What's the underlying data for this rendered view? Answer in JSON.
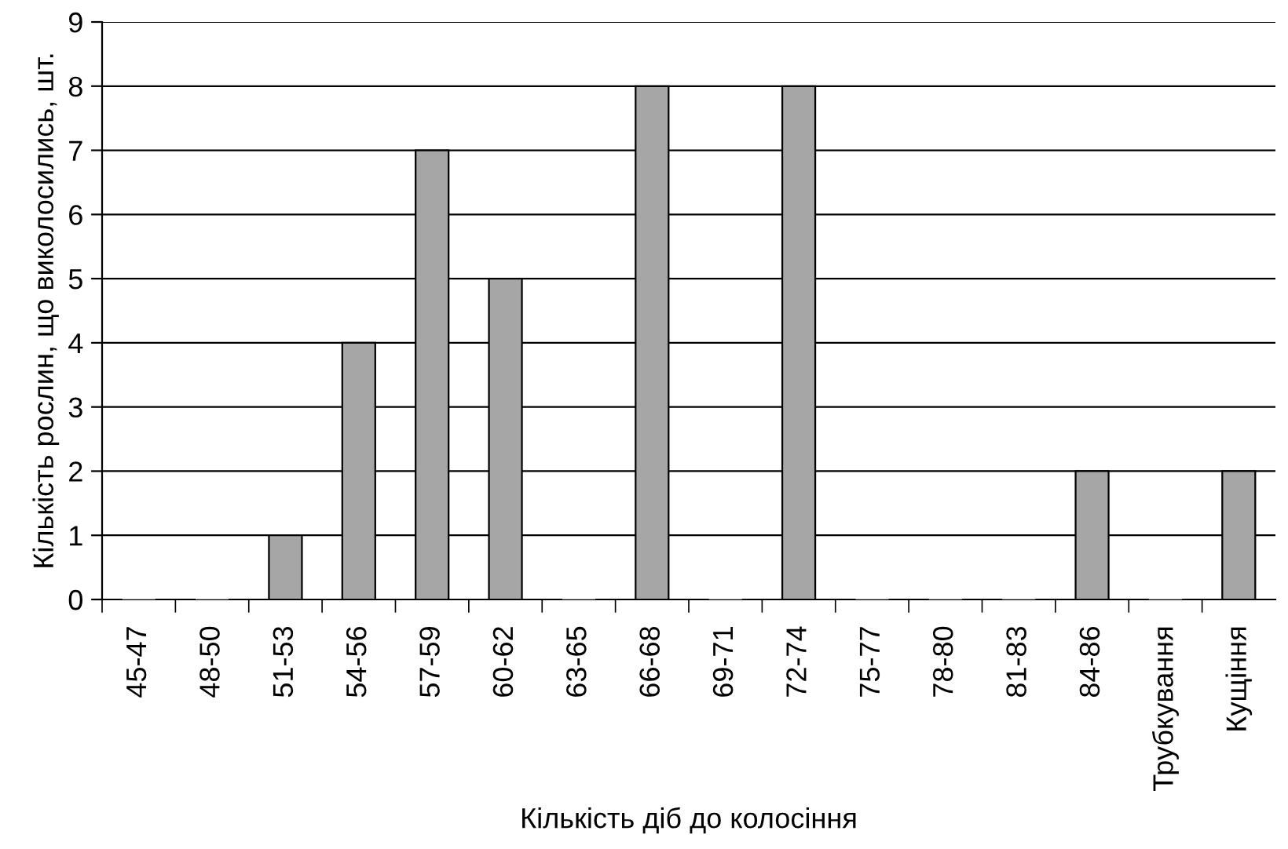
{
  "chart_data": {
    "type": "bar",
    "xlabel": "Кількість діб до колосіння",
    "ylabel": "Кількість рослин, що виколосились, шт.",
    "categories": [
      "45-47",
      "48-50",
      "51-53",
      "54-56",
      "57-59",
      "60-62",
      "63-65",
      "66-68",
      "69-71",
      "72-74",
      "75-77",
      "78-80",
      "81-83",
      "84-86",
      "Трубкування",
      "Кущіння"
    ],
    "values": [
      0,
      0,
      1,
      4,
      7,
      5,
      0,
      8,
      0,
      8,
      0,
      0,
      0,
      2,
      0,
      2
    ],
    "color": "#a6a6a6",
    "ylim": [
      0,
      9
    ],
    "yticks": [
      0,
      1,
      2,
      3,
      4,
      5,
      6,
      7,
      8,
      9
    ],
    "grid": "y",
    "legend": false
  }
}
